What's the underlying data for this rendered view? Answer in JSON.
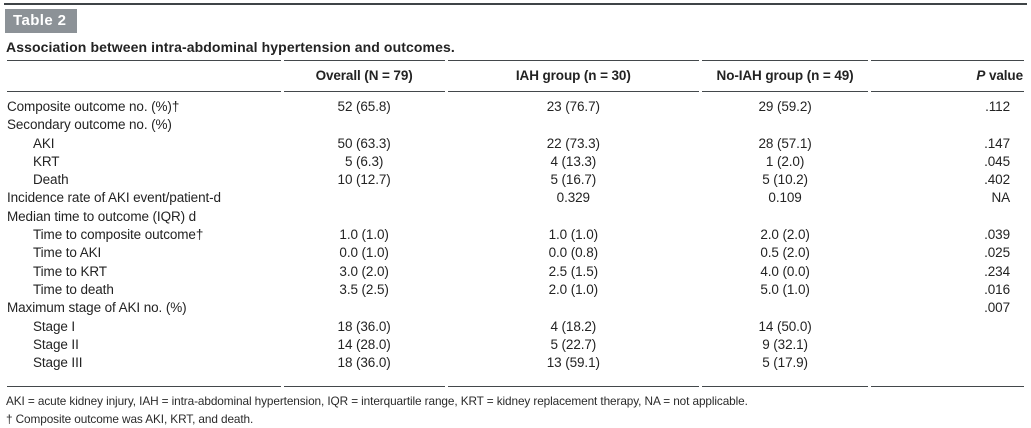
{
  "page": {
    "table_label": "Table 2",
    "title": "Association between intra-abdominal hypertension and outcomes."
  },
  "table": {
    "headers": {
      "col_label": "",
      "col_overall": "Overall (N = 79)",
      "col_iah": "IAH group (n = 30)",
      "col_noiah": "No-IAH group (n = 49)",
      "p_italic": "P",
      "p_rest": " value"
    },
    "rows": [
      {
        "label": "Composite outcome no. (%)†",
        "indent": 0,
        "overall": "52 (65.8)",
        "iah": "23 (76.7)",
        "noiah": "29 (59.2)",
        "p": ".112"
      },
      {
        "label": "Secondary outcome no. (%)",
        "indent": 0,
        "overall": "",
        "iah": "",
        "noiah": "",
        "p": ""
      },
      {
        "label": "AKI",
        "indent": 1,
        "overall": "50 (63.3)",
        "iah": "22 (73.3)",
        "noiah": "28 (57.1)",
        "p": ".147"
      },
      {
        "label": "KRT",
        "indent": 1,
        "overall": "5 (6.3)",
        "iah": "4 (13.3)",
        "noiah": "1 (2.0)",
        "p": ".045"
      },
      {
        "label": "Death",
        "indent": 1,
        "overall": "10 (12.7)",
        "iah": "5 (16.7)",
        "noiah": "5 (10.2)",
        "p": ".402"
      },
      {
        "label": "Incidence rate of AKI event/patient-d",
        "indent": 0,
        "overall": "",
        "iah": "0.329",
        "noiah": "0.109",
        "p": "NA"
      },
      {
        "label": "Median time to outcome (IQR) d",
        "indent": 0,
        "overall": "",
        "iah": "",
        "noiah": "",
        "p": ""
      },
      {
        "label": "Time to composite outcome†",
        "indent": 1,
        "overall": "1.0 (1.0)",
        "iah": "1.0 (1.0)",
        "noiah": "2.0 (2.0)",
        "p": ".039"
      },
      {
        "label": "Time to AKI",
        "indent": 1,
        "overall": "0.0 (1.0)",
        "iah": "0.0 (0.8)",
        "noiah": "0.5 (2.0)",
        "p": ".025"
      },
      {
        "label": "Time to KRT",
        "indent": 1,
        "overall": "3.0 (2.0)",
        "iah": "2.5 (1.5)",
        "noiah": "4.0 (0.0)",
        "p": ".234"
      },
      {
        "label": "Time to death",
        "indent": 1,
        "overall": "3.5 (2.5)",
        "iah": "2.0 (1.0)",
        "noiah": "5.0 (1.0)",
        "p": ".016"
      },
      {
        "label": "Maximum stage of AKI no. (%)",
        "indent": 0,
        "overall": "",
        "iah": "",
        "noiah": "",
        "p": ".007"
      },
      {
        "label": "Stage I",
        "indent": 1,
        "overall": "18 (36.0)",
        "iah": "4 (18.2)",
        "noiah": "14 (50.0)",
        "p": ""
      },
      {
        "label": "Stage II",
        "indent": 1,
        "overall": "14 (28.0)",
        "iah": "5 (22.7)",
        "noiah": "9 (32.1)",
        "p": ""
      },
      {
        "label": "Stage III",
        "indent": 1,
        "overall": "18 (36.0)",
        "iah": "13 (59.1)",
        "noiah": "5 (17.9)",
        "p": ""
      }
    ]
  },
  "footnotes": {
    "abbreviations": "AKI = acute kidney injury, IAH = intra-abdominal hypertension, IQR = interquartile range, KRT = kidney replacement therapy, NA = not applicable.",
    "dagger": "† Composite outcome was AKI, KRT, and death."
  },
  "colors": {
    "table_label_bg": "#8c9297",
    "table_label_text": "#ffffff",
    "rule": "#43484b",
    "text": "#232323"
  }
}
